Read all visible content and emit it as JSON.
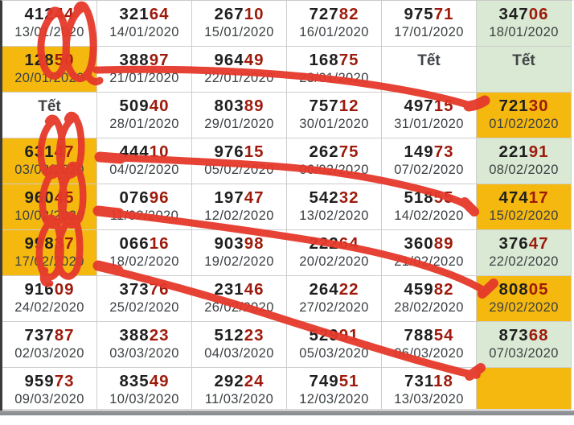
{
  "app": {
    "description": "Lottery special-prize results calendar with hand-drawn marker annotations"
  },
  "colors": {
    "white": "#ffffff",
    "orange": "#f5b80f",
    "green": "#d9e9d3",
    "num_black": "#1f1f1f",
    "num_red": "#9e1a0c",
    "date_text": "#3c4043",
    "grid_border": "#cdcdcd",
    "marker_red": "#e5392b"
  },
  "table": {
    "rows": [
      {
        "cells": [
          {
            "black": "412",
            "red": "44",
            "date": "13/01/2020",
            "bg": "white"
          },
          {
            "black": "321",
            "red": "64",
            "date": "14/01/2020",
            "bg": "white"
          },
          {
            "black": "267",
            "red": "10",
            "date": "15/01/2020",
            "bg": "white"
          },
          {
            "black": "727",
            "red": "82",
            "date": "16/01/2020",
            "bg": "white"
          },
          {
            "black": "975",
            "red": "71",
            "date": "17/01/2020",
            "bg": "white"
          },
          {
            "black": "347",
            "red": "06",
            "date": "18/01/2020",
            "bg": "green"
          }
        ]
      },
      {
        "cells": [
          {
            "black": "128",
            "red": "50",
            "date": "20/01/2020",
            "bg": "orange"
          },
          {
            "black": "388",
            "red": "97",
            "date": "21/01/2020",
            "bg": "white"
          },
          {
            "black": "964",
            "red": "49",
            "date": "22/01/2020",
            "bg": "white"
          },
          {
            "black": "168",
            "red": "75",
            "date": "23/01/2020",
            "bg": "white"
          },
          {
            "label": "Tết",
            "bg": "white"
          },
          {
            "label": "Tết",
            "bg": "green"
          }
        ]
      },
      {
        "cells": [
          {
            "label": "Tết",
            "bg": "white"
          },
          {
            "black": "509",
            "red": "40",
            "date": "28/01/2020",
            "bg": "white"
          },
          {
            "black": "803",
            "red": "89",
            "date": "29/01/2020",
            "bg": "white"
          },
          {
            "black": "757",
            "red": "12",
            "date": "30/01/2020",
            "bg": "white"
          },
          {
            "black": "497",
            "red": "15",
            "date": "31/01/2020",
            "bg": "white"
          },
          {
            "black": "721",
            "red": "30",
            "date": "01/02/2020",
            "bg": "orange"
          }
        ]
      },
      {
        "cells": [
          {
            "black": "631",
            "red": "47",
            "date": "03/02/2020",
            "bg": "orange"
          },
          {
            "black": "444",
            "red": "10",
            "date": "04/02/2020",
            "bg": "white"
          },
          {
            "black": "976",
            "red": "15",
            "date": "05/02/2020",
            "bg": "white"
          },
          {
            "black": "262",
            "red": "75",
            "date": "06/02/2020",
            "bg": "white"
          },
          {
            "black": "149",
            "red": "73",
            "date": "07/02/2020",
            "bg": "white"
          },
          {
            "black": "221",
            "red": "91",
            "date": "08/02/2020",
            "bg": "green"
          }
        ]
      },
      {
        "cells": [
          {
            "black": "960",
            "red": "45",
            "date": "10/02/2020",
            "bg": "orange"
          },
          {
            "black": "076",
            "red": "96",
            "date": "11/02/2020",
            "bg": "white"
          },
          {
            "black": "197",
            "red": "47",
            "date": "12/02/2020",
            "bg": "white"
          },
          {
            "black": "542",
            "red": "32",
            "date": "13/02/2020",
            "bg": "white"
          },
          {
            "black": "518",
            "red": "55",
            "date": "14/02/2020",
            "bg": "white"
          },
          {
            "black": "474",
            "red": "17",
            "date": "15/02/2020",
            "bg": "orange"
          }
        ]
      },
      {
        "cells": [
          {
            "black": "998",
            "red": "37",
            "date": "17/02/2020",
            "bg": "orange"
          },
          {
            "black": "066",
            "red": "16",
            "date": "18/02/2020",
            "bg": "white"
          },
          {
            "black": "903",
            "red": "98",
            "date": "19/02/2020",
            "bg": "white"
          },
          {
            "black": "222",
            "red": "64",
            "date": "20/02/2020",
            "bg": "white"
          },
          {
            "black": "360",
            "red": "89",
            "date": "21/02/2020",
            "bg": "white"
          },
          {
            "black": "376",
            "red": "47",
            "date": "22/02/2020",
            "bg": "green"
          }
        ]
      },
      {
        "cells": [
          {
            "black": "916",
            "red": "09",
            "date": "24/02/2020",
            "bg": "white"
          },
          {
            "black": "373",
            "red": "76",
            "date": "25/02/2020",
            "bg": "white"
          },
          {
            "black": "231",
            "red": "46",
            "date": "26/02/2020",
            "bg": "white"
          },
          {
            "black": "264",
            "red": "22",
            "date": "27/02/2020",
            "bg": "white"
          },
          {
            "black": "459",
            "red": "82",
            "date": "28/02/2020",
            "bg": "white"
          },
          {
            "black": "808",
            "red": "05",
            "date": "29/02/2020",
            "bg": "orange"
          }
        ]
      },
      {
        "cells": [
          {
            "black": "737",
            "red": "87",
            "date": "02/03/2020",
            "bg": "white"
          },
          {
            "black": "388",
            "red": "23",
            "date": "03/03/2020",
            "bg": "white"
          },
          {
            "black": "512",
            "red": "23",
            "date": "04/03/2020",
            "bg": "white"
          },
          {
            "black": "529",
            "red": "91",
            "date": "05/03/2020",
            "bg": "white"
          },
          {
            "black": "788",
            "red": "54",
            "date": "06/03/2020",
            "bg": "white"
          },
          {
            "black": "873",
            "red": "68",
            "date": "07/03/2020",
            "bg": "green"
          }
        ]
      },
      {
        "cells": [
          {
            "black": "959",
            "red": "73",
            "date": "09/03/2020",
            "bg": "white"
          },
          {
            "black": "835",
            "red": "49",
            "date": "10/03/2020",
            "bg": "white"
          },
          {
            "black": "292",
            "red": "24",
            "date": "11/03/2020",
            "bg": "white"
          },
          {
            "black": "749",
            "red": "51",
            "date": "12/03/2020",
            "bg": "white"
          },
          {
            "black": "731",
            "red": "18",
            "date": "13/03/2020",
            "bg": "white"
          },
          {
            "bg": "orange"
          }
        ]
      }
    ]
  },
  "annotations": {
    "marker_color": "#e5392b",
    "marks": [
      {
        "name": "scribble-double-zero",
        "desc": "hand-drawn '00' over the 13/01 and 20/01 cells"
      },
      {
        "name": "strike-line-1",
        "desc": "marker line from 20/01 cell across row 2 ending at 72130 (01/02)"
      },
      {
        "name": "scribble-loop-chain",
        "desc": "vertical chain of loops over first-column cells from Tết/63147 down to 99837 (17/02)"
      },
      {
        "name": "strike-line-2",
        "desc": "marker line from 44410 (04/02) ending at 51855 (14/02)"
      },
      {
        "name": "strike-line-3",
        "desc": "marker line from 96045/07696 row ending at 80805 (29/02)"
      },
      {
        "name": "strike-line-4",
        "desc": "marker line from 06616 (18/02) ending near 73118 (13/03)"
      }
    ]
  }
}
